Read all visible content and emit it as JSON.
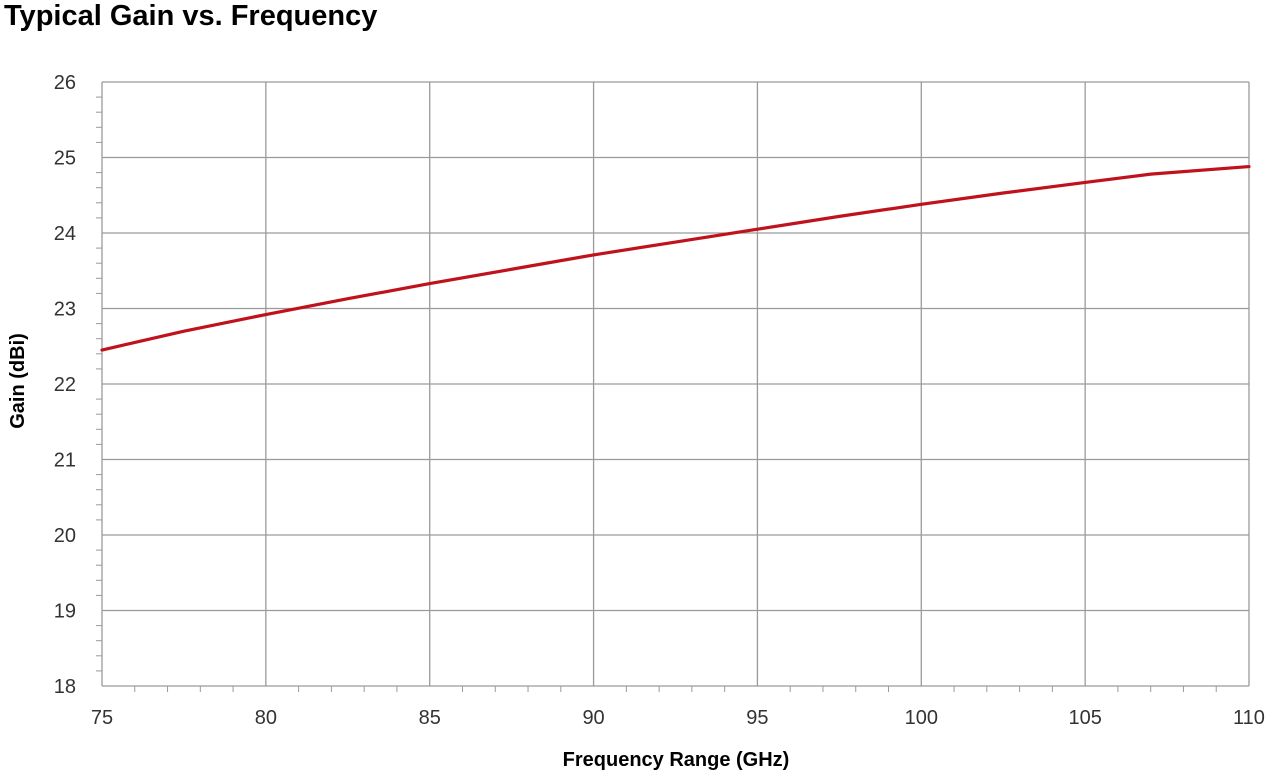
{
  "chart_data": {
    "type": "line",
    "title": "Typical Gain vs. Frequency",
    "xlabel": "Frequency Range (GHz)",
    "ylabel": "Gain (dBi)",
    "xlim": [
      75,
      110
    ],
    "ylim": [
      18,
      26
    ],
    "xticks": [
      75,
      80,
      85,
      90,
      95,
      100,
      105,
      110
    ],
    "yticks": [
      18,
      19,
      20,
      21,
      22,
      23,
      24,
      25,
      26
    ],
    "grid": true,
    "legend": "none",
    "series": [
      {
        "color": "#c0121c",
        "x": [
          75,
          77.5,
          80,
          82.5,
          85,
          87.5,
          90,
          92.5,
          95,
          97.5,
          100,
          102.5,
          105,
          107,
          110
        ],
        "y": [
          22.45,
          22.7,
          22.92,
          23.13,
          23.33,
          23.52,
          23.71,
          23.88,
          24.05,
          24.22,
          24.38,
          24.53,
          24.67,
          24.78,
          24.88
        ]
      }
    ]
  }
}
